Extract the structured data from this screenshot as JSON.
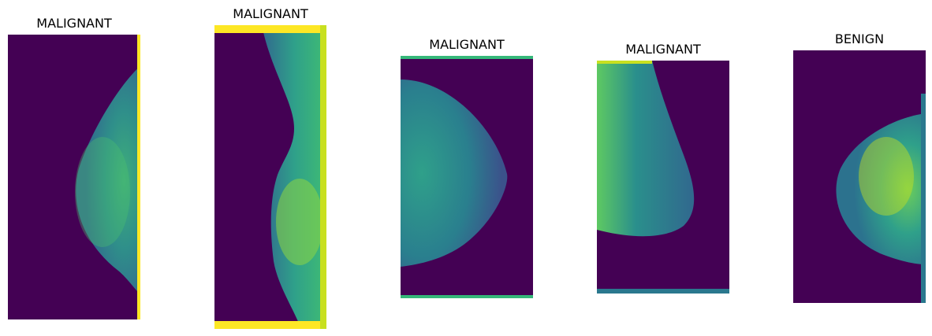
{
  "figure": {
    "panels": [
      {
        "title": "MALIGNANT"
      },
      {
        "title": "MALIGNANT"
      },
      {
        "title": "MALIGNANT"
      },
      {
        "title": "MALIGNANT"
      },
      {
        "title": "BENIGN"
      }
    ]
  },
  "colors": {
    "background_dark": "#440154",
    "tissue_teal": "#2a788e",
    "tissue_green": "#35b779",
    "tissue_yellow": "#c8e020",
    "edge_yellow": "#fde725"
  }
}
